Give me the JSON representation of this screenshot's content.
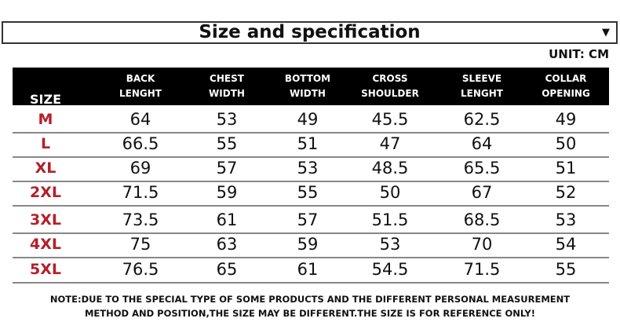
{
  "title": "Size and specification",
  "dropdown_icon": "triangle-down-icon",
  "unit": "UNIT: CM",
  "headers": [
    [
      "SIZE"
    ],
    [
      "BACK",
      "LENGHT"
    ],
    [
      "CHEST",
      "WIDTH"
    ],
    [
      "BOTTOM",
      "WIDTH"
    ],
    [
      "CROSS",
      "SHOULDER"
    ],
    [
      "SLEEVE",
      "LENGHT"
    ],
    [
      "COLLAR",
      "OPENING"
    ]
  ],
  "rows": [
    [
      "M",
      "64",
      "53",
      "49",
      "45.5",
      "62.5",
      "49"
    ],
    [
      "L",
      "66.5",
      "55",
      "51",
      "47",
      "64",
      "50"
    ],
    [
      "XL",
      "69",
      "57",
      "53",
      "48.5",
      "65.5",
      "51"
    ],
    [
      "2XL",
      "71.5",
      "59",
      "55",
      "50",
      "67",
      "52"
    ],
    [
      "3XL",
      "73.5",
      "61",
      "57",
      "51.5",
      "68.5",
      "53"
    ],
    [
      "4XL",
      "75",
      "63",
      "59",
      "53",
      "70",
      "54"
    ],
    [
      "5XL",
      "76.5",
      "65",
      "61",
      "54.5",
      "71.5",
      "55"
    ]
  ],
  "note": [
    "NOTE:DUE TO THE SPECIAL TYPE OF SOME PRODUCTS AND THE DIFFERENT PERSONAL MEASUREMENT",
    "METHOD AND POSITION,THE SIZE MAY BE DIFFERENT.THE SIZE IS FOR REFERENCE ONLY!"
  ],
  "colors": {
    "size_label": "#b3202a",
    "header_bg": "#000000"
  }
}
